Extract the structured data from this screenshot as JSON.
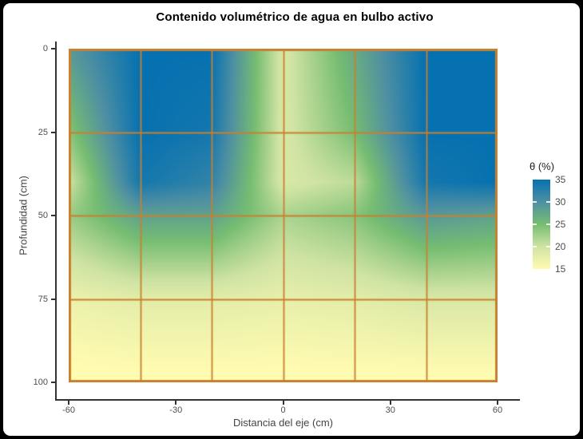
{
  "colors": {
    "frame": "#000000",
    "background": "#ffffff",
    "grid": "#c9802f",
    "axis": "#333333",
    "tick_text": "#4d4d4d",
    "axis_title_text": "#444444",
    "title_text": "#000000"
  },
  "chart_data": {
    "type": "heatmap",
    "title": "Contenido volumétrico de agua en bulbo activo",
    "xlabel": "Distancia del eje (cm)",
    "ylabel": "Profundidad (cm)",
    "x_ticks": [
      -60,
      -30,
      0,
      30,
      60
    ],
    "depth_ticks": [
      0,
      25,
      50,
      75,
      100
    ],
    "xlim": [
      -60,
      60
    ],
    "depth_lim": [
      0,
      100
    ],
    "grid_x_lines": [
      -60,
      -40,
      -20,
      0,
      20,
      40,
      60
    ],
    "grid_depth_lines": [
      0,
      25,
      50,
      75,
      100
    ],
    "interpolation": "bilinear",
    "x_nodes": [
      -60,
      -40,
      -20,
      0,
      20,
      40,
      60
    ],
    "depth_nodes": [
      0,
      25,
      40,
      50,
      75,
      100
    ],
    "theta_values": [
      [
        29,
        35,
        35,
        19,
        27,
        35,
        35
      ],
      [
        24,
        35,
        34,
        19,
        25,
        35,
        35
      ],
      [
        20,
        34,
        32,
        19,
        21,
        34,
        35
      ],
      [
        23,
        28,
        28,
        22,
        24,
        29,
        28
      ],
      [
        17,
        18,
        18,
        17.5,
        18,
        19,
        19
      ],
      [
        14.5,
        14.5,
        14.5,
        14.5,
        14.5,
        14.5,
        14.5
      ]
    ],
    "legend": {
      "title": "θ (%)",
      "ticks": [
        35,
        30,
        25,
        20,
        15
      ],
      "vmin": 15,
      "vmax": 35,
      "notch_ticks": [
        30,
        25,
        20
      ]
    },
    "color_stops": [
      {
        "value": 15,
        "color": "#fffbb1"
      },
      {
        "value": 20,
        "color": "#cfe3a3"
      },
      {
        "value": 25,
        "color": "#76bd72"
      },
      {
        "value": 30,
        "color": "#4f90a2"
      },
      {
        "value": 35,
        "color": "#0671b0"
      }
    ]
  }
}
